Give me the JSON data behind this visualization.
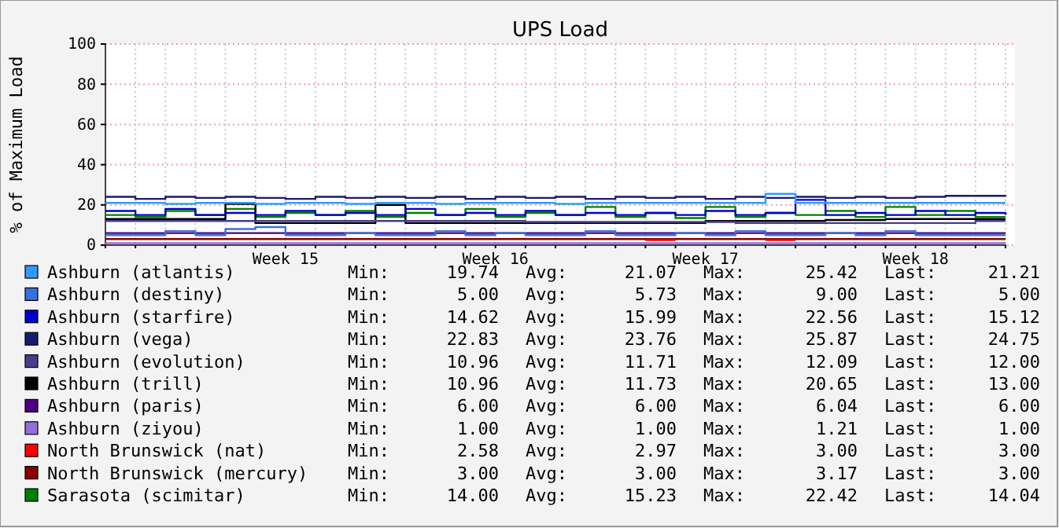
{
  "chart_data": {
    "type": "step",
    "title": "UPS Load",
    "ylabel": "% of Maximum Load",
    "categories": [
      null,
      null,
      null,
      null,
      null,
      null,
      "Week 15",
      null,
      null,
      null,
      null,
      null,
      null,
      "Week 16",
      null,
      null,
      null,
      null,
      null,
      null,
      "Week 17",
      null,
      null,
      null,
      null,
      null,
      null,
      "Week 18",
      null,
      null,
      null
    ],
    "ylim": [
      0,
      100
    ],
    "yticks": [
      0,
      20,
      40,
      60,
      80,
      100
    ],
    "grid": true,
    "legend": "bottom",
    "series": [
      {
        "name": "Ashburn (atlantis)",
        "color": "#3399ff",
        "values": [
          21,
          21,
          20.5,
          21,
          21,
          20.5,
          21,
          21,
          20.5,
          21,
          21,
          20.5,
          21,
          21,
          21,
          20.5,
          21,
          21,
          21,
          21,
          21,
          21,
          25.5,
          21,
          21,
          21,
          21,
          21,
          21,
          21,
          21
        ]
      },
      {
        "name": "Ashburn (destiny)",
        "color": "#3a6fe0",
        "values": [
          5,
          5,
          7,
          5,
          8,
          9,
          5,
          5,
          6,
          5,
          5,
          7,
          5,
          6,
          5,
          5,
          7,
          5,
          5,
          6,
          5,
          7,
          5,
          5,
          6,
          5,
          7,
          5,
          5,
          5,
          5
        ]
      },
      {
        "name": "Ashburn (starfire)",
        "color": "#0000cc",
        "values": [
          17,
          15,
          18,
          15,
          16,
          15,
          17,
          15,
          16,
          15,
          18,
          15,
          16,
          15,
          17,
          15,
          16,
          15,
          16,
          15,
          17,
          15,
          16,
          22.5,
          15,
          16,
          15,
          17,
          15,
          16,
          15
        ]
      },
      {
        "name": "Ashburn (vega)",
        "color": "#1a1a6e",
        "values": [
          24,
          23,
          24,
          23.5,
          24,
          23.5,
          23,
          24,
          23.5,
          24,
          23.5,
          24,
          23,
          24,
          23.5,
          24,
          23,
          24,
          23.5,
          24,
          23,
          24,
          23.5,
          24,
          23.5,
          24,
          23.5,
          24,
          24.5,
          24.5,
          25
        ]
      },
      {
        "name": "Ashburn (evolution)",
        "color": "#483d8b",
        "values": [
          12,
          12,
          12,
          12,
          12,
          12,
          12,
          12,
          12,
          12,
          12,
          12,
          12,
          12,
          11.5,
          11.5,
          11.5,
          11.5,
          11.5,
          11.5,
          11.5,
          11,
          11,
          11,
          11,
          11,
          11,
          11,
          11,
          12,
          12
        ]
      },
      {
        "name": "Ashburn (trill)",
        "color": "#000000",
        "values": [
          13,
          13,
          13,
          13,
          20.5,
          11,
          11,
          11,
          11,
          20,
          11,
          11,
          11,
          11,
          11,
          11,
          11,
          11,
          11,
          11,
          12,
          12,
          12,
          12,
          12.5,
          12.5,
          13,
          13,
          13,
          13,
          13
        ]
      },
      {
        "name": "Ashburn (paris)",
        "color": "#4b0082",
        "values": [
          6,
          6,
          6,
          6,
          6,
          6,
          6,
          6,
          6,
          6,
          6,
          6,
          6,
          6,
          6,
          6,
          6,
          6,
          6,
          6,
          6,
          6,
          6,
          6,
          6,
          6,
          6,
          6,
          6,
          6,
          6
        ]
      },
      {
        "name": "Ashburn (ziyou)",
        "color": "#9370db",
        "values": [
          1,
          1,
          1,
          1,
          1,
          1,
          1,
          1,
          1,
          1,
          1,
          1,
          1,
          1,
          1,
          1,
          1,
          1,
          1,
          1,
          1,
          1,
          1,
          1,
          1,
          1,
          1,
          1,
          1,
          1,
          1
        ]
      },
      {
        "name": "North Brunswick (nat)",
        "color": "#ff0000",
        "values": [
          null,
          null,
          null,
          null,
          null,
          null,
          null,
          null,
          null,
          null,
          null,
          null,
          null,
          null,
          null,
          null,
          null,
          null,
          2.5,
          2.5,
          null,
          null,
          2.5,
          2.5,
          null,
          null,
          null,
          null,
          null,
          null,
          null
        ]
      },
      {
        "name": "North Brunswick (mercury)",
        "color": "#8b0000",
        "values": [
          3,
          3,
          3,
          3,
          3,
          3,
          3,
          3,
          3,
          3,
          3,
          3,
          3,
          3,
          3,
          3,
          3,
          3,
          3,
          3,
          3,
          3,
          3,
          3,
          3,
          3,
          3,
          3,
          3,
          3,
          3
        ]
      },
      {
        "name": "Sarasota (scimitar)",
        "color": "#008000",
        "values": [
          15,
          14,
          17,
          15,
          18,
          14,
          16,
          15,
          17,
          14,
          16,
          15,
          18,
          14,
          16,
          15,
          19,
          14,
          16,
          13.5,
          19,
          14,
          16,
          15,
          17,
          14,
          19,
          15,
          17,
          14,
          14
        ]
      }
    ],
    "annotations": [
      "Min:",
      "19.74",
      "Avg:",
      "21.07",
      "Max:",
      "25.42",
      "Last:",
      "21.21",
      "Min:",
      "5.00",
      "Avg:",
      "5.73",
      "Max:",
      "9.00",
      "Last:",
      "5.00",
      "Min:",
      "14.62",
      "Avg:",
      "15.99",
      "Max:",
      "22.56",
      "Last:",
      "15.12",
      "Min:",
      "22.83",
      "Avg:",
      "23.76",
      "Max:",
      "25.87",
      "Last:",
      "24.75",
      "Min:",
      "10.96",
      "Avg:",
      "11.71",
      "Max:",
      "12.09",
      "Last:",
      "12.00",
      "Min:",
      "10.96",
      "Avg:",
      "11.73",
      "Max:",
      "20.65",
      "Last:",
      "13.00",
      "Min:",
      "6.00",
      "Avg:",
      "6.00",
      "Max:",
      "6.04",
      "Last:",
      "6.00",
      "Min:",
      "1.00",
      "Avg:",
      "1.00",
      "Max:",
      "1.21",
      "Last:",
      "1.00",
      "Min:",
      "2.58",
      "Avg:",
      "2.97",
      "Max:",
      "3.00",
      "Last:",
      "3.00",
      "Min:",
      "3.00",
      "Avg:",
      "3.00",
      "Max:",
      "3.17",
      "Last:",
      "3.00",
      "Min:",
      "14.00",
      "Avg:",
      "15.23",
      "Max:",
      "22.42",
      "Last:",
      "14.04"
    ]
  }
}
